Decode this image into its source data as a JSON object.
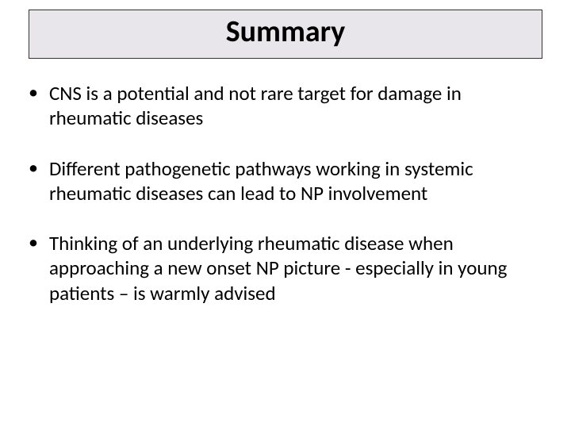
{
  "slide": {
    "title": "Summary",
    "title_bar": {
      "background_color": "#e8e6ea",
      "border_color": "#333333"
    },
    "bullets": [
      {
        "text": "CNS is a potential and not rare target for damage in rheumatic diseases"
      },
      {
        "text": "Different pathogenetic pathways working in systemic rheumatic diseases can lead to NP involvement"
      },
      {
        "text": "Thinking of an underlying  rheumatic disease when approaching a new onset NP picture - especially in young patients – is warmly advised"
      }
    ],
    "typography": {
      "title_fontsize": 38,
      "title_fontweight": "bold",
      "body_fontsize": 25,
      "font_family": "Calibri",
      "text_color": "#000000"
    },
    "background_color": "#ffffff",
    "bullet_marker": "•"
  }
}
